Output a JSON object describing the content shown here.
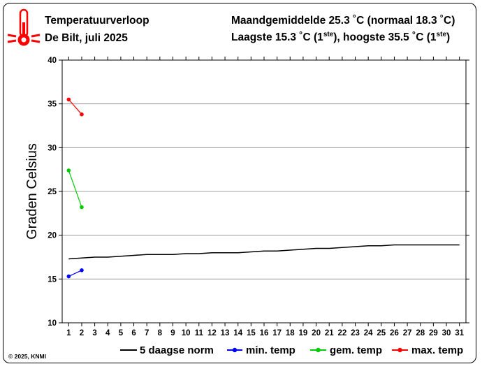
{
  "header": {
    "title_line1": "Temperatuurverloop",
    "title_line2": "De Bilt, juli 2025",
    "summary_line1": "Maandgemiddelde 25.3 ˚C (normaal 18.3 ˚C)",
    "summary_line2_low": "Laagste 15.3 ˚C (1",
    "summary_line2_low_sup": "ste",
    "summary_line2_mid": "), hoogste 35.5 ˚C (1",
    "summary_line2_high_sup": "ste",
    "summary_line2_end": ")"
  },
  "footer": {
    "copyright": "© 2025, KNMI"
  },
  "colors": {
    "norm": "#000000",
    "min": "#0000ff",
    "gem": "#00cc00",
    "max": "#ff0000",
    "grid": "#888888",
    "thermometer": "#ff0000"
  },
  "icons": {
    "logo": "thermometer-icon"
  },
  "chart_data": {
    "type": "line",
    "title": "Temperatuurverloop",
    "ylabel": "Graden Celsius",
    "xlabel": "",
    "xlim": [
      0.5,
      31.5
    ],
    "ylim": [
      10,
      40
    ],
    "yticks": [
      10,
      15,
      20,
      25,
      30,
      35,
      40
    ],
    "xticks": [
      1,
      2,
      3,
      4,
      5,
      6,
      7,
      8,
      9,
      10,
      11,
      12,
      13,
      14,
      15,
      16,
      17,
      18,
      19,
      20,
      21,
      22,
      23,
      24,
      25,
      26,
      27,
      28,
      29,
      30,
      31
    ],
    "grid": "horizontal",
    "legend_position": "bottom",
    "series": [
      {
        "name": "5 daagse norm",
        "key": "norm",
        "markers": false,
        "x": [
          1,
          2,
          3,
          4,
          5,
          6,
          7,
          8,
          9,
          10,
          11,
          12,
          13,
          14,
          15,
          16,
          17,
          18,
          19,
          20,
          21,
          22,
          23,
          24,
          25,
          26,
          27,
          28,
          29,
          30,
          31
        ],
        "values": [
          17.3,
          17.4,
          17.5,
          17.5,
          17.6,
          17.7,
          17.8,
          17.8,
          17.8,
          17.9,
          17.9,
          18.0,
          18.0,
          18.0,
          18.1,
          18.2,
          18.2,
          18.3,
          18.4,
          18.5,
          18.5,
          18.6,
          18.7,
          18.8,
          18.8,
          18.9,
          18.9,
          18.9,
          18.9,
          18.9,
          18.9
        ]
      },
      {
        "name": "min. temp",
        "key": "min",
        "markers": true,
        "x": [
          1,
          2
        ],
        "values": [
          15.3,
          16.0
        ]
      },
      {
        "name": "gem. temp",
        "key": "gem",
        "markers": true,
        "x": [
          1,
          2
        ],
        "values": [
          27.4,
          23.2
        ]
      },
      {
        "name": "max. temp",
        "key": "max",
        "markers": true,
        "x": [
          1,
          2
        ],
        "values": [
          35.5,
          33.8
        ]
      }
    ]
  }
}
